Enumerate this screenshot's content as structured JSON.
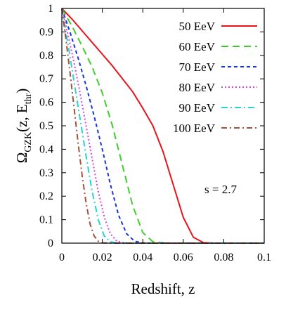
{
  "chart_data": {
    "type": "line",
    "xlabel": "Redshift, z",
    "ylabel_main": "Ω",
    "ylabel_sub": "GZK",
    "ylabel_args": "(z, E",
    "ylabel_args_sub": "thr",
    "ylabel_close": ")",
    "xlim": [
      0,
      0.1
    ],
    "ylim": [
      0,
      1
    ],
    "xticks": [
      0,
      0.02,
      0.04,
      0.06,
      0.08,
      0.1
    ],
    "xtick_labels": [
      "0",
      "0.02",
      "0.04",
      "0.06",
      "0.08",
      "0.1"
    ],
    "yticks": [
      0,
      0.1,
      0.2,
      0.3,
      0.4,
      0.5,
      0.6,
      0.7,
      0.8,
      0.9,
      1
    ],
    "ytick_labels": [
      "0",
      "0.1",
      "0.2",
      "0.3",
      "0.4",
      "0.5",
      "0.6",
      "0.7",
      "0.8",
      "0.9",
      "1"
    ],
    "grid": false,
    "legend_position": "top-right",
    "annotation": "s = 2.7",
    "series": [
      {
        "name": "50 EeV",
        "color": "#e8141c",
        "dash": "",
        "x": [
          0,
          0.005,
          0.01,
          0.015,
          0.02,
          0.025,
          0.03,
          0.035,
          0.04,
          0.045,
          0.05,
          0.055,
          0.06,
          0.065,
          0.07,
          0.075,
          0.08,
          0.1
        ],
        "y": [
          1,
          0.955,
          0.905,
          0.855,
          0.805,
          0.755,
          0.7,
          0.645,
          0.575,
          0.5,
          0.39,
          0.25,
          0.11,
          0.025,
          0.002,
          0,
          0,
          0
        ]
      },
      {
        "name": "60 EeV",
        "color": "#3ecf2a",
        "dash": "10,6",
        "x": [
          0,
          0.005,
          0.01,
          0.015,
          0.02,
          0.025,
          0.03,
          0.035,
          0.04,
          0.045,
          0.05,
          0.055,
          0.1
        ],
        "y": [
          1,
          0.925,
          0.84,
          0.75,
          0.64,
          0.5,
          0.33,
          0.16,
          0.045,
          0.006,
          0.001,
          0,
          0
        ]
      },
      {
        "name": "70 EeV",
        "color": "#1a34d6",
        "dash": "5,4",
        "x": [
          0,
          0.004,
          0.008,
          0.012,
          0.016,
          0.02,
          0.024,
          0.028,
          0.032,
          0.036,
          0.04,
          0.045,
          0.1
        ],
        "y": [
          1,
          0.9,
          0.79,
          0.67,
          0.54,
          0.4,
          0.25,
          0.12,
          0.04,
          0.008,
          0.001,
          0,
          0
        ]
      },
      {
        "name": "80 EeV",
        "color": "#e23fe0",
        "dash": "2,3",
        "x": [
          0,
          0.003,
          0.006,
          0.009,
          0.012,
          0.015,
          0.018,
          0.021,
          0.024,
          0.027,
          0.03,
          0.034,
          0.1
        ],
        "y": [
          1,
          0.89,
          0.77,
          0.64,
          0.5,
          0.36,
          0.22,
          0.11,
          0.04,
          0.01,
          0.002,
          0,
          0
        ]
      },
      {
        "name": "90 EeV",
        "color": "#26d4d4",
        "dash": "9,4,2,4",
        "x": [
          0,
          0.003,
          0.006,
          0.009,
          0.012,
          0.015,
          0.018,
          0.021,
          0.024,
          0.027,
          0.03,
          0.1
        ],
        "y": [
          1,
          0.85,
          0.69,
          0.53,
          0.37,
          0.22,
          0.1,
          0.03,
          0.006,
          0.001,
          0,
          0
        ]
      },
      {
        "name": "100 EeV",
        "color": "#a6523a",
        "dash": "8,4,2,4",
        "x": [
          0,
          0.002,
          0.004,
          0.006,
          0.008,
          0.01,
          0.012,
          0.014,
          0.016,
          0.018,
          0.02,
          0.023,
          0.1
        ],
        "y": [
          1,
          0.87,
          0.73,
          0.58,
          0.43,
          0.29,
          0.17,
          0.08,
          0.03,
          0.008,
          0.001,
          0,
          0
        ]
      }
    ]
  }
}
